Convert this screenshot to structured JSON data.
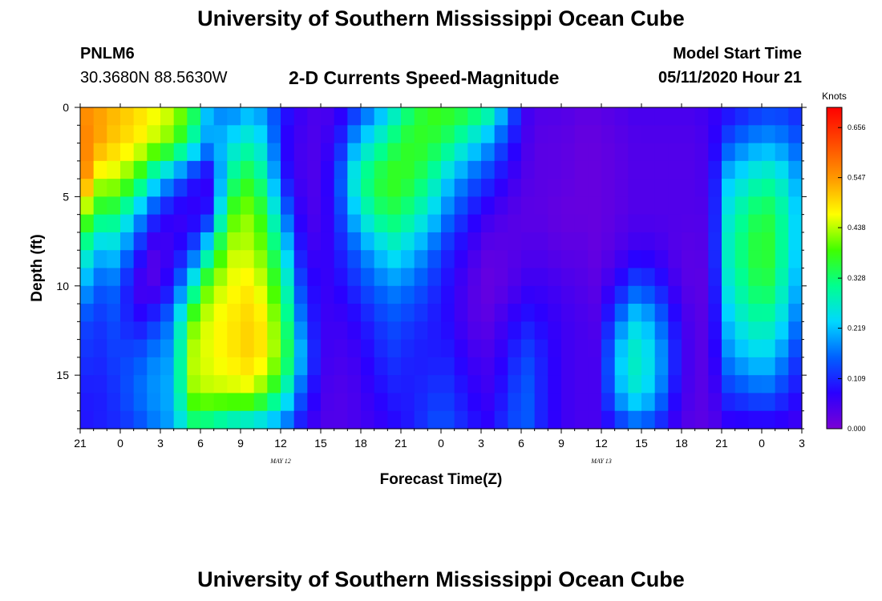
{
  "header": {
    "title": "University of Southern Mississippi Ocean Cube",
    "station": "PNLM6",
    "coordinates": "30.3680N 88.5630W",
    "subtitle": "2-D Currents Speed-Magnitude",
    "model_start_label": "Model Start Time",
    "model_start_value": "05/11/2020 Hour 21"
  },
  "footer": {
    "title": "University of Southern Mississippi Ocean Cube"
  },
  "chart_data": {
    "type": "heatmap",
    "xlabel": "Forecast Time(Z)",
    "ylabel": "Depth (ft)",
    "x_tick_labels": [
      "21",
      "0",
      "3",
      "6",
      "9",
      "12",
      "15",
      "18",
      "21",
      "0",
      "3",
      "6",
      "9",
      "12",
      "15",
      "18",
      "21",
      "0",
      "3"
    ],
    "x_range_hours": [
      0,
      54
    ],
    "date_labels": [
      {
        "text": "MAY 12",
        "hour": 15
      },
      {
        "text": "MAY 13",
        "hour": 39
      }
    ],
    "y_ticks": [
      0,
      5,
      10,
      15
    ],
    "ylim": [
      0,
      18
    ],
    "y_inverted": true,
    "colorbar": {
      "unit": "Knots",
      "tick_labels": [
        "0.656",
        "0.547",
        "0.438",
        "0.328",
        "0.219",
        "0.109",
        "0.000"
      ],
      "range": [
        0,
        0.7
      ],
      "colors": [
        "#7a00d4",
        "#2a00ff",
        "#0060ff",
        "#00d8ff",
        "#00ff90",
        "#40ff00",
        "#ffff00",
        "#ff9a00",
        "#ff4a00",
        "#ff0000"
      ]
    },
    "grid_columns": 54,
    "grid_rows": 18,
    "depth_knots": [
      0,
      2,
      4,
      6,
      8,
      10,
      12,
      14,
      16,
      18
    ],
    "speed_knots_table": [
      [
        0.56,
        0.58,
        0.6,
        0.44,
        0.32,
        0.22,
        0.14,
        0.12,
        0.1,
        0.09
      ],
      [
        0.54,
        0.54,
        0.45,
        0.34,
        0.22,
        0.15,
        0.12,
        0.11,
        0.1,
        0.1
      ],
      [
        0.52,
        0.5,
        0.44,
        0.33,
        0.23,
        0.16,
        0.14,
        0.13,
        0.12,
        0.11
      ],
      [
        0.5,
        0.48,
        0.38,
        0.22,
        0.12,
        0.05,
        0.08,
        0.14,
        0.16,
        0.13
      ],
      [
        0.47,
        0.44,
        0.26,
        0.12,
        0.04,
        0.04,
        0.12,
        0.18,
        0.19,
        0.17
      ],
      [
        0.45,
        0.4,
        0.18,
        0.06,
        0.06,
        0.1,
        0.18,
        0.2,
        0.21,
        0.2
      ],
      [
        0.38,
        0.3,
        0.1,
        0.06,
        0.12,
        0.26,
        0.4,
        0.44,
        0.42,
        0.3
      ],
      [
        0.2,
        0.18,
        0.06,
        0.1,
        0.28,
        0.42,
        0.46,
        0.46,
        0.44,
        0.28
      ],
      [
        0.16,
        0.24,
        0.3,
        0.38,
        0.44,
        0.46,
        0.48,
        0.48,
        0.44,
        0.24
      ],
      [
        0.2,
        0.28,
        0.36,
        0.42,
        0.44,
        0.48,
        0.5,
        0.5,
        0.45,
        0.22
      ],
      [
        0.18,
        0.24,
        0.3,
        0.36,
        0.4,
        0.44,
        0.48,
        0.48,
        0.4,
        0.2
      ],
      [
        0.1,
        0.08,
        0.1,
        0.18,
        0.26,
        0.32,
        0.36,
        0.38,
        0.3,
        0.16
      ],
      [
        0.06,
        0.05,
        0.05,
        0.06,
        0.08,
        0.12,
        0.16,
        0.2,
        0.14,
        0.08
      ],
      [
        0.04,
        0.04,
        0.04,
        0.04,
        0.05,
        0.06,
        0.06,
        0.06,
        0.05,
        0.04
      ],
      [
        0.06,
        0.1,
        0.14,
        0.12,
        0.1,
        0.08,
        0.06,
        0.05,
        0.04,
        0.04
      ],
      [
        0.12,
        0.22,
        0.3,
        0.24,
        0.16,
        0.12,
        0.08,
        0.06,
        0.05,
        0.05
      ],
      [
        0.18,
        0.28,
        0.36,
        0.32,
        0.22,
        0.16,
        0.12,
        0.1,
        0.08,
        0.06
      ],
      [
        0.26,
        0.34,
        0.38,
        0.34,
        0.26,
        0.18,
        0.14,
        0.12,
        0.1,
        0.08
      ],
      [
        0.34,
        0.38,
        0.36,
        0.3,
        0.22,
        0.16,
        0.12,
        0.1,
        0.1,
        0.1
      ],
      [
        0.38,
        0.36,
        0.3,
        0.24,
        0.16,
        0.12,
        0.1,
        0.1,
        0.12,
        0.14
      ],
      [
        0.38,
        0.32,
        0.22,
        0.16,
        0.1,
        0.08,
        0.08,
        0.1,
        0.12,
        0.14
      ],
      [
        0.36,
        0.26,
        0.16,
        0.1,
        0.06,
        0.04,
        0.04,
        0.06,
        0.08,
        0.1
      ],
      [
        0.32,
        0.2,
        0.12,
        0.06,
        0.03,
        0.02,
        0.03,
        0.05,
        0.06,
        0.08
      ],
      [
        0.2,
        0.12,
        0.07,
        0.04,
        0.03,
        0.03,
        0.06,
        0.08,
        0.1,
        0.12
      ],
      [
        0.06,
        0.05,
        0.04,
        0.03,
        0.04,
        0.06,
        0.1,
        0.14,
        0.16,
        0.16
      ],
      [
        0.04,
        0.03,
        0.03,
        0.03,
        0.04,
        0.06,
        0.08,
        0.1,
        0.1,
        0.1
      ],
      [
        0.04,
        0.03,
        0.03,
        0.02,
        0.03,
        0.05,
        0.06,
        0.06,
        0.06,
        0.06
      ],
      [
        0.03,
        0.02,
        0.02,
        0.02,
        0.03,
        0.04,
        0.05,
        0.05,
        0.05,
        0.05
      ],
      [
        0.03,
        0.02,
        0.02,
        0.02,
        0.02,
        0.03,
        0.04,
        0.05,
        0.05,
        0.05
      ],
      [
        0.04,
        0.03,
        0.03,
        0.03,
        0.04,
        0.08,
        0.16,
        0.22,
        0.2,
        0.1
      ],
      [
        0.05,
        0.04,
        0.04,
        0.04,
        0.06,
        0.14,
        0.24,
        0.28,
        0.26,
        0.14
      ],
      [
        0.05,
        0.04,
        0.04,
        0.04,
        0.06,
        0.12,
        0.2,
        0.24,
        0.22,
        0.12
      ],
      [
        0.05,
        0.04,
        0.04,
        0.04,
        0.04,
        0.06,
        0.1,
        0.12,
        0.1,
        0.06
      ],
      [
        0.05,
        0.04,
        0.04,
        0.04,
        0.03,
        0.03,
        0.04,
        0.04,
        0.04,
        0.03
      ],
      [
        0.06,
        0.05,
        0.05,
        0.04,
        0.04,
        0.03,
        0.03,
        0.03,
        0.03,
        0.03
      ],
      [
        0.08,
        0.14,
        0.22,
        0.26,
        0.28,
        0.26,
        0.22,
        0.18,
        0.12,
        0.06
      ],
      [
        0.1,
        0.18,
        0.26,
        0.32,
        0.34,
        0.32,
        0.28,
        0.22,
        0.14,
        0.06
      ],
      [
        0.12,
        0.2,
        0.3,
        0.36,
        0.38,
        0.36,
        0.3,
        0.24,
        0.16,
        0.06
      ],
      [
        0.12,
        0.18,
        0.26,
        0.3,
        0.3,
        0.28,
        0.24,
        0.18,
        0.12,
        0.06
      ],
      [
        0.1,
        0.14,
        0.18,
        0.2,
        0.2,
        0.18,
        0.14,
        0.1,
        0.08,
        0.05
      ]
    ]
  }
}
